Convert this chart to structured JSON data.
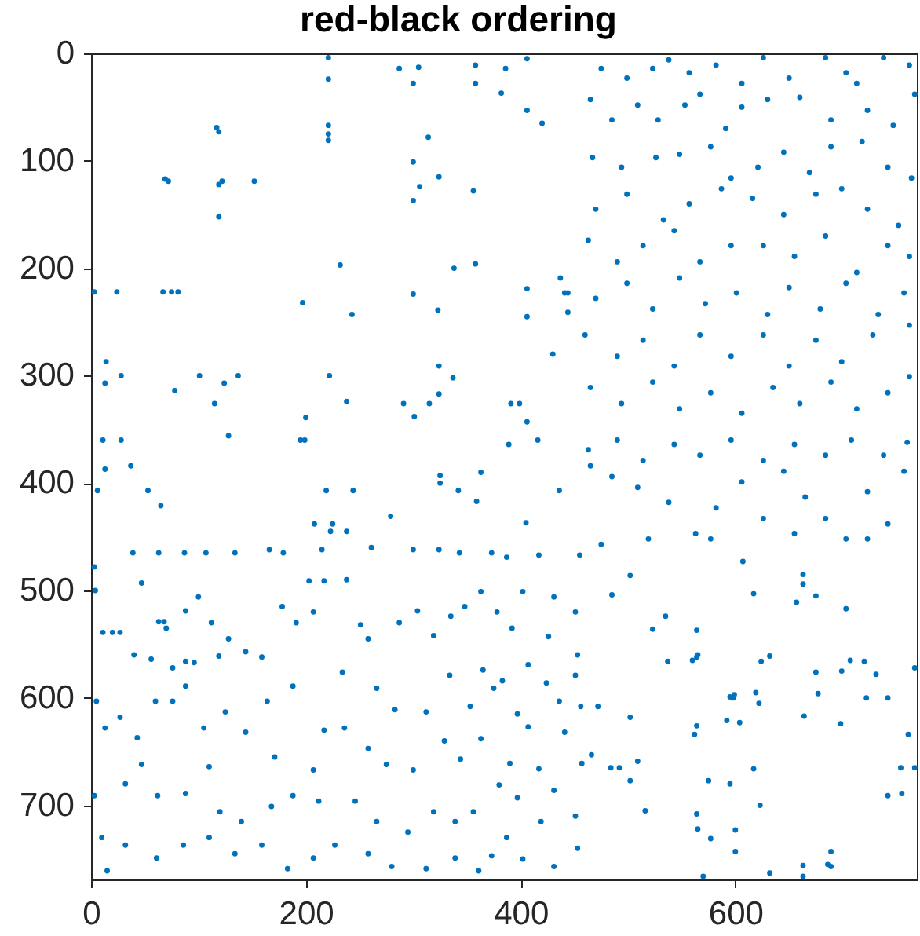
{
  "chart_data": {
    "type": "scatter",
    "title": "red-black ordering",
    "color": "#0072bd",
    "marker": "circle",
    "xlim": [
      0,
      769
    ],
    "ylim": [
      769,
      0
    ],
    "xticks": [
      0,
      200,
      400,
      600
    ],
    "yticks": [
      0,
      100,
      200,
      300,
      400,
      500,
      600,
      700
    ],
    "x": [
      221,
      221,
      221,
      221,
      221,
      287,
      300,
      305,
      358,
      358,
      382,
      117,
      119,
      69,
      72,
      119,
      122,
      152,
      119,
      300,
      314,
      324,
      306,
      300,
      356,
      232,
      338,
      358,
      3,
      24,
      67,
      75,
      81,
      197,
      243,
      300,
      323,
      14,
      13,
      28,
      101,
      78,
      124,
      137,
      115,
      222,
      238,
      200,
      195,
      199,
      128,
      11,
      28,
      13,
      37,
      324,
      337,
      291,
      301,
      315,
      324,
      386,
      406,
      406,
      420,
      406,
      406,
      437,
      441,
      444,
      444,
      430,
      391,
      399,
      406,
      416,
      389,
      6,
      53,
      65,
      219,
      244,
      208,
      225,
      223,
      238,
      279,
      325,
      325,
      342,
      363,
      359,
      405,
      436,
      472,
      502,
      466,
      484,
      492,
      502,
      509,
      516,
      502,
      485,
      523,
      535,
      537,
      564,
      560,
      564,
      565,
      562,
      564,
      575,
      564,
      565,
      577,
      570,
      592,
      595,
      598,
      599,
      604,
      595,
      600,
      600,
      619,
      622,
      617,
      623,
      624,
      632,
      617,
      607,
      632,
      657,
      663,
      663,
      675,
      664,
      675,
      677,
      663,
      663,
      686,
      689,
      689,
      703,
      698,
      699,
      707,
      720,
      722,
      731,
      742,
      742,
      754,
      755,
      761,
      767,
      767,
      475,
      499,
      523,
      538,
      557,
      582,
      606,
      626,
      650,
      684,
      703,
      738,
      762,
      465,
      485,
      509,
      528,
      553,
      567,
      591,
      606,
      630,
      660,
      689,
      713,
      723,
      747,
      767,
      467,
      494,
      526,
      548,
      577,
      596,
      621,
      645,
      669,
      689,
      718,
      742,
      764,
      470,
      499,
      533,
      557,
      587,
      616,
      645,
      675,
      699,
      723,
      752,
      463,
      490,
      514,
      543,
      567,
      596,
      626,
      655,
      684,
      713,
      742,
      762,
      470,
      499,
      523,
      548,
      572,
      601,
      630,
      650,
      679,
      703,
      733,
      757,
      460,
      490,
      514,
      543,
      567,
      596,
      626,
      650,
      675,
      699,
      728,
      762,
      465,
      494,
      523,
      548,
      577,
      606,
      635,
      660,
      689,
      713,
      742,
      762,
      463,
      490,
      514,
      543,
      567,
      596,
      626,
      655,
      684,
      708,
      738,
      760,
      465,
      485,
      509,
      538,
      563,
      582,
      606,
      626,
      645,
      665,
      684,
      703,
      723,
      742,
      757,
      475,
      519,
      577,
      655,
      723,
      39,
      63,
      87,
      107,
      134,
      166,
      179,
      215,
      261,
      300,
      324,
      343,
      373,
      3,
      4,
      11,
      20,
      27,
      47,
      63,
      68,
      70,
      40,
      56,
      76,
      88,
      96,
      112,
      88,
      100,
      128,
      119,
      144,
      159,
      178,
      191,
      207,
      217,
      203,
      238,
      251,
      258,
      287,
      304,
      319,
      335,
      348,
      363,
      378,
      234,
      188,
      266,
      283,
      312,
      334,
      365,
      353,
      375,
      5,
      13,
      27,
      43,
      60,
      76,
      88,
      105,
      125,
      144,
      164,
      171,
      207,
      217,
      236,
      258,
      275,
      300,
      329,
      344,
      363,
      380,
      3,
      32,
      47,
      62,
      88,
      110,
      120,
      140,
      168,
      188,
      212,
      246,
      266,
      295,
      319,
      339,
      356,
      10,
      32,
      61,
      86,
      110,
      134,
      159,
      183,
      207,
      227,
      258,
      280,
      312,
      339,
      361,
      15,
      387,
      417,
      455,
      402,
      431,
      451,
      392,
      426,
      453,
      407,
      383,
      424,
      451,
      397,
      436,
      456,
      407,
      441,
      390,
      417,
      457,
      397,
      431,
      451,
      387,
      419,
      453,
      402,
      431,
      373
    ],
    "values": [
      4,
      24,
      67,
      75,
      81,
      14,
      28,
      13,
      11,
      28,
      37,
      69,
      73,
      117,
      119,
      122,
      119,
      119,
      152,
      101,
      78,
      115,
      124,
      137,
      128,
      197,
      200,
      196,
      222,
      222,
      222,
      222,
      222,
      232,
      243,
      224,
      239,
      287,
      307,
      300,
      300,
      314,
      307,
      300,
      326,
      300,
      324,
      339,
      360,
      360,
      356,
      360,
      360,
      387,
      384,
      291,
      302,
      326,
      338,
      326,
      317,
      14,
      5,
      53,
      65,
      219,
      245,
      209,
      223,
      223,
      241,
      280,
      326,
      326,
      343,
      360,
      364,
      407,
      407,
      421,
      407,
      407,
      438,
      438,
      445,
      445,
      431,
      393,
      400,
      407,
      390,
      417,
      437,
      407,
      608,
      618,
      653,
      665,
      665,
      677,
      659,
      705,
      486,
      504,
      536,
      524,
      566,
      537,
      565,
      562,
      560,
      634,
      626,
      677,
      708,
      722,
      731,
      766,
      621,
      599,
      600,
      597,
      623,
      680,
      723,
      743,
      595,
      605,
      666,
      700,
      566,
      561,
      503,
      473,
      763,
      511,
      494,
      485,
      505,
      617,
      576,
      596,
      756,
      766,
      755,
      757,
      743,
      517,
      624,
      575,
      565,
      566,
      600,
      578,
      600,
      691,
      665,
      689,
      634,
      572,
      665,
      14,
      23,
      14,
      6,
      18,
      11,
      28,
      4,
      23,
      4,
      18,
      4,
      11,
      43,
      62,
      48,
      62,
      48,
      38,
      70,
      50,
      43,
      41,
      62,
      28,
      53,
      67,
      38,
      97,
      106,
      97,
      94,
      87,
      116,
      106,
      92,
      111,
      87,
      82,
      106,
      116,
      145,
      131,
      155,
      140,
      126,
      135,
      150,
      131,
      126,
      145,
      160,
      174,
      194,
      179,
      165,
      194,
      179,
      179,
      189,
      170,
      204,
      179,
      189,
      228,
      214,
      238,
      209,
      233,
      223,
      243,
      218,
      238,
      214,
      243,
      223,
      262,
      282,
      267,
      291,
      262,
      282,
      262,
      291,
      267,
      287,
      262,
      253,
      311,
      326,
      306,
      331,
      316,
      335,
      311,
      326,
      306,
      331,
      316,
      301,
      369,
      360,
      379,
      364,
      374,
      360,
      379,
      364,
      374,
      360,
      374,
      362,
      384,
      394,
      404,
      418,
      447,
      423,
      399,
      433,
      389,
      413,
      433,
      452,
      408,
      438,
      389,
      457,
      452,
      452,
      447,
      452,
      465,
      465,
      465,
      465,
      465,
      462,
      465,
      462,
      460,
      462,
      462,
      465,
      465,
      478,
      500,
      539,
      539,
      539,
      493,
      529,
      529,
      535,
      560,
      564,
      572,
      566,
      567,
      530,
      519,
      506,
      545,
      561,
      557,
      562,
      515,
      530,
      520,
      491,
      491,
      490,
      532,
      545,
      530,
      519,
      542,
      524,
      515,
      501,
      520,
      576,
      589,
      591,
      611,
      613,
      579,
      574,
      608,
      591,
      603,
      628,
      618,
      637,
      603,
      603,
      589,
      628,
      613,
      632,
      603,
      655,
      667,
      630,
      628,
      647,
      662,
      667,
      640,
      657,
      638,
      681,
      691,
      680,
      662,
      691,
      689,
      664,
      706,
      715,
      701,
      691,
      696,
      696,
      715,
      725,
      706,
      715,
      706,
      730,
      737,
      749,
      737,
      730,
      745,
      737,
      759,
      749,
      737,
      745,
      757,
      759,
      749,
      761,
      761,
      469,
      467,
      467,
      501,
      506,
      520,
      535,
      543,
      560,
      569,
      584,
      586,
      579,
      615,
      603,
      608,
      627,
      632,
      661,
      666,
      661,
      693,
      686,
      710,
      730,
      715,
      740,
      750,
      757,
      747
    ]
  }
}
